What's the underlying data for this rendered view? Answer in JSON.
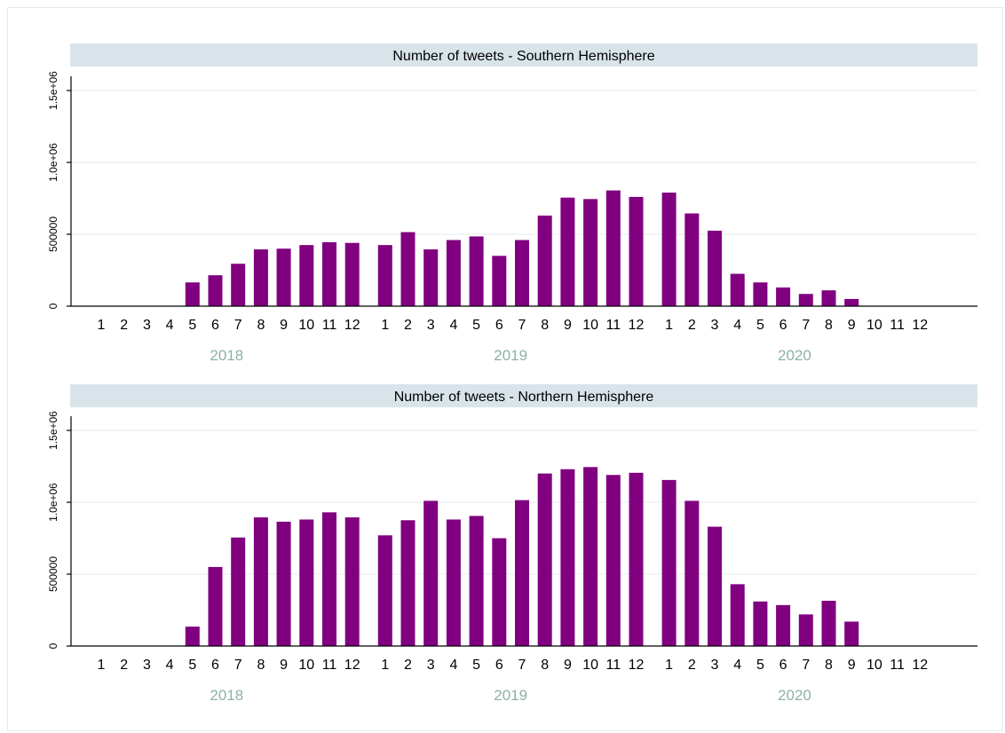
{
  "colors": {
    "bar": "#800080",
    "title_band": "#d9e4ea",
    "year_label": "#8eb0a6",
    "grid": "#e9eef1",
    "axis": "#000000"
  },
  "chart_data": [
    {
      "type": "bar",
      "title": "Number of tweets - Southern Hemisphere",
      "ylim": [
        0,
        1500000
      ],
      "y_ticks": [
        0,
        500000,
        1000000,
        1500000
      ],
      "y_tick_labels": [
        "0",
        "500000",
        "1.0e+06",
        "1.5e+06"
      ],
      "grid": true,
      "groups": [
        {
          "year": "2018",
          "months": [
            "1",
            "2",
            "3",
            "4",
            "5",
            "6",
            "7",
            "8",
            "9",
            "10",
            "11",
            "12"
          ],
          "values": [
            0,
            0,
            0,
            0,
            165000,
            215000,
            295000,
            395000,
            400000,
            425000,
            445000,
            440000
          ]
        },
        {
          "year": "2019",
          "months": [
            "1",
            "2",
            "3",
            "4",
            "5",
            "6",
            "7",
            "8",
            "9",
            "10",
            "11",
            "12"
          ],
          "values": [
            425000,
            515000,
            395000,
            460000,
            485000,
            350000,
            460000,
            630000,
            755000,
            745000,
            805000,
            760000
          ]
        },
        {
          "year": "2020",
          "months": [
            "1",
            "2",
            "3",
            "4",
            "5",
            "6",
            "7",
            "8",
            "9",
            "10",
            "11",
            "12"
          ],
          "values": [
            790000,
            645000,
            525000,
            225000,
            165000,
            130000,
            85000,
            110000,
            50000,
            0,
            0,
            0
          ]
        }
      ]
    },
    {
      "type": "bar",
      "title": "Number of tweets - Northern Hemisphere",
      "ylim": [
        0,
        1500000
      ],
      "y_ticks": [
        0,
        500000,
        1000000,
        1500000
      ],
      "y_tick_labels": [
        "0",
        "500000",
        "1.0e+06",
        "1.5e+06"
      ],
      "grid": true,
      "groups": [
        {
          "year": "2018",
          "months": [
            "1",
            "2",
            "3",
            "4",
            "5",
            "6",
            "7",
            "8",
            "9",
            "10",
            "11",
            "12"
          ],
          "values": [
            0,
            0,
            0,
            0,
            135000,
            550000,
            755000,
            895000,
            865000,
            880000,
            930000,
            895000
          ]
        },
        {
          "year": "2019",
          "months": [
            "1",
            "2",
            "3",
            "4",
            "5",
            "6",
            "7",
            "8",
            "9",
            "10",
            "11",
            "12"
          ],
          "values": [
            770000,
            875000,
            1010000,
            880000,
            905000,
            750000,
            1015000,
            1200000,
            1230000,
            1245000,
            1190000,
            1205000
          ]
        },
        {
          "year": "2020",
          "months": [
            "1",
            "2",
            "3",
            "4",
            "5",
            "6",
            "7",
            "8",
            "9",
            "10",
            "11",
            "12"
          ],
          "values": [
            1155000,
            1010000,
            830000,
            430000,
            310000,
            285000,
            220000,
            315000,
            170000,
            0,
            0,
            0
          ]
        }
      ]
    }
  ]
}
